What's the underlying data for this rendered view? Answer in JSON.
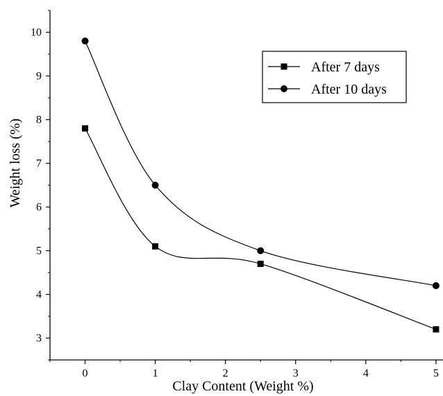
{
  "chart_data": {
    "type": "line",
    "xlabel": "Clay Content (Weight %)",
    "ylabel": "Weight loss (%)",
    "xlim": [
      -0.5,
      5.1
    ],
    "ylim": [
      2.5,
      10.5
    ],
    "xticks": [
      0,
      1,
      2,
      3,
      4,
      5
    ],
    "yticks": [
      3,
      4,
      5,
      6,
      7,
      8,
      9,
      10
    ],
    "grid": false,
    "legend_position": "top-right",
    "series": [
      {
        "name": "After 7 days",
        "marker": "square",
        "x": [
          0,
          1,
          2.5,
          5
        ],
        "values": [
          7.8,
          5.1,
          4.7,
          3.2
        ]
      },
      {
        "name": "After 10 days",
        "marker": "circle",
        "x": [
          0,
          1,
          2.5,
          5
        ],
        "values": [
          9.8,
          6.5,
          5.0,
          4.2
        ]
      }
    ]
  }
}
